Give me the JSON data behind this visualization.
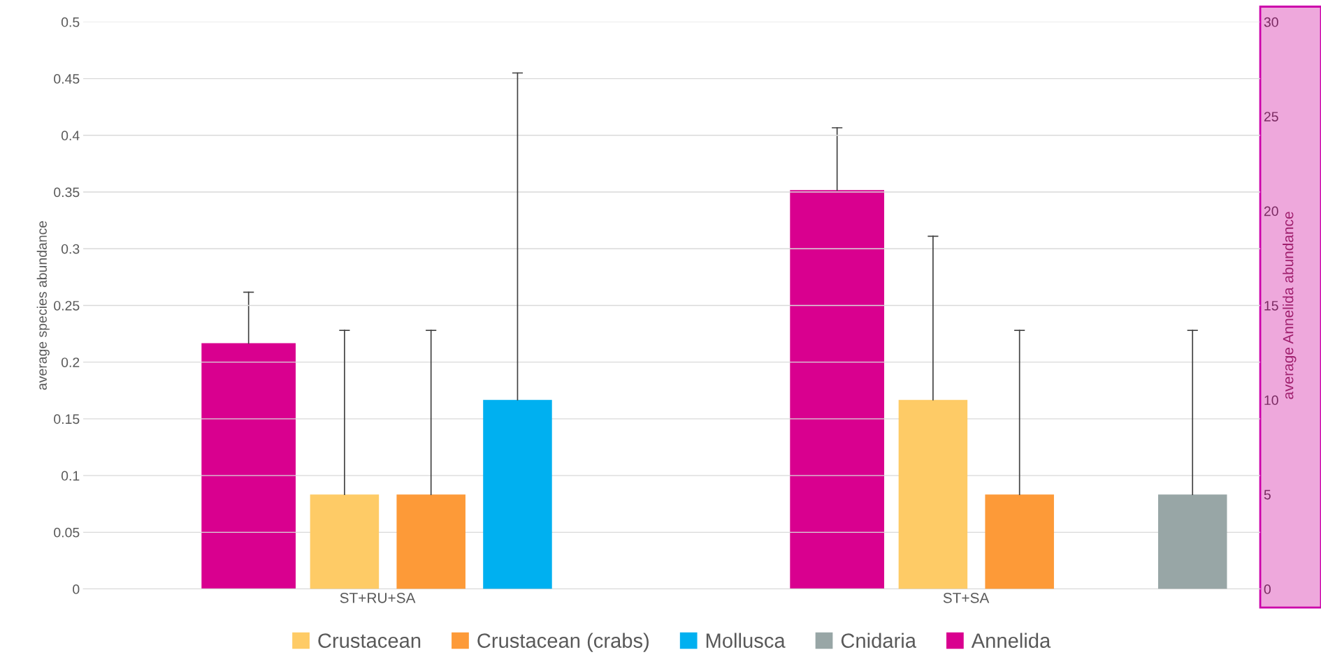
{
  "chart_data": {
    "type": "bar",
    "ylabel": "average species abundance",
    "y2label": "average Annelida abundance",
    "categories": [
      "ST+RU+SA",
      "ST+SA"
    ],
    "series": [
      {
        "name": "Crustacean",
        "color": "#fecb66",
        "values": [
          0.0833,
          0.1667
        ],
        "errors": [
          [
            0.0833,
            0.228
          ],
          [
            0.1667,
            0.311
          ]
        ]
      },
      {
        "name": "Crustacean (crabs)",
        "color": "#fd9a38",
        "values": [
          0.0833,
          0.0833
        ],
        "errors": [
          [
            0.0833,
            0.228
          ],
          [
            0.0833,
            0.228
          ]
        ]
      },
      {
        "name": "Mollusca",
        "color": "#00b0f0",
        "values": [
          0.1667,
          0
        ],
        "errors": [
          [
            0.1667,
            0.455
          ],
          null
        ]
      },
      {
        "name": "Cnidaria",
        "color": "#98a6a6",
        "values": [
          0,
          0.0833
        ],
        "errors": [
          null,
          [
            0.0833,
            0.228
          ]
        ]
      },
      {
        "name": "Annelida",
        "color": "#d9008f",
        "axis": "y2",
        "values": [
          13,
          21.1
        ],
        "errors": [
          [
            13,
            15.7
          ],
          [
            21.1,
            24.4
          ]
        ]
      }
    ],
    "ylim": [
      0,
      0.5
    ],
    "yticks": [
      0,
      0.05,
      0.1,
      0.15,
      0.2,
      0.25,
      0.3,
      0.35,
      0.4,
      0.45,
      0.5
    ],
    "y2lim": [
      0,
      30
    ],
    "y2ticks": [
      0,
      5,
      10,
      15,
      20,
      25,
      30
    ],
    "grid": "y",
    "legend": "bottom"
  }
}
